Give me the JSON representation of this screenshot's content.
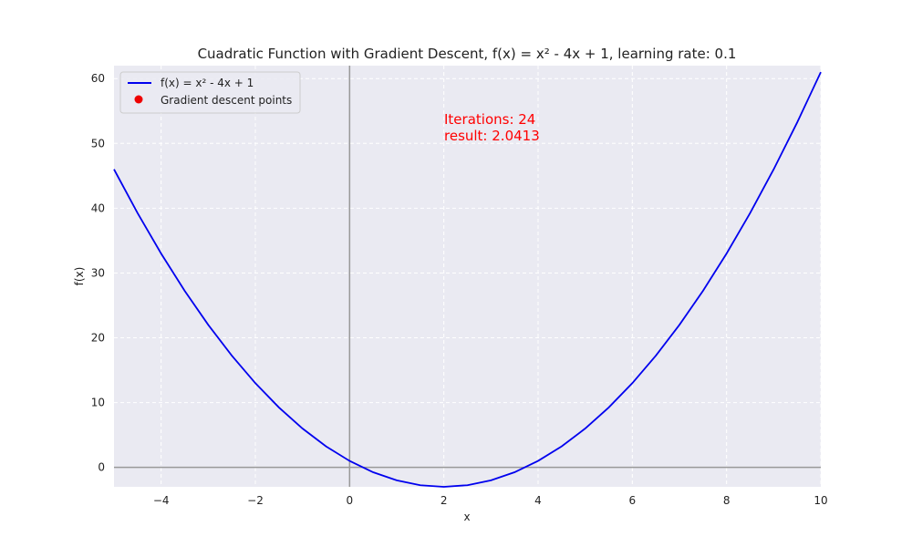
{
  "chart_data": {
    "type": "line",
    "title": "Cuadratic Function with Gradient Descent, f(x) = x² - 4x + 1, learning rate: 0.1",
    "xlabel": "x",
    "ylabel": "f(x)",
    "xlim": [
      -5,
      10
    ],
    "ylim": [
      -3,
      62
    ],
    "xticks": [
      -4,
      -2,
      0,
      2,
      4,
      6,
      8,
      10
    ],
    "xtick_labels": [
      "−4",
      "−2",
      "0",
      "2",
      "4",
      "6",
      "8",
      "10"
    ],
    "yticks": [
      0,
      10,
      20,
      30,
      40,
      50,
      60
    ],
    "ytick_labels": [
      "0",
      "10",
      "20",
      "30",
      "40",
      "50",
      "60"
    ],
    "grid": true,
    "legend_position": "upper-left",
    "series": [
      {
        "name": "f(x) = x² - 4x + 1",
        "kind": "line",
        "color": "#0000ee",
        "x": [
          -5,
          -4.5,
          -4,
          -3.5,
          -3,
          -2.5,
          -2,
          -1.5,
          -1,
          -0.5,
          0,
          0.5,
          1,
          1.5,
          2,
          2.5,
          3,
          3.5,
          4,
          4.5,
          5,
          5.5,
          6,
          6.5,
          7,
          7.5,
          8,
          8.5,
          9,
          9.5,
          10
        ],
        "y": [
          46,
          39.25,
          33,
          27.25,
          22,
          17.25,
          13,
          9.25,
          6,
          3.25,
          1,
          -0.75,
          -2,
          -2.75,
          -3,
          -2.75,
          -2,
          -0.75,
          1,
          3.25,
          6,
          9.25,
          13,
          17.25,
          22,
          27.25,
          33,
          39.25,
          46,
          53.25,
          61
        ]
      },
      {
        "name": "Gradient descent points",
        "kind": "scatter",
        "color": "#ee0000",
        "x": [],
        "y": []
      }
    ],
    "reference_lines": {
      "x": 0,
      "y": 0,
      "color": "#999999"
    },
    "annotation": {
      "lines": [
        "Iterations: 24",
        "result: 2.0413"
      ],
      "x": 2,
      "y": 53,
      "color": "#ff0000"
    },
    "colors": {
      "plot_background": "#eaeaf2",
      "grid": "#ffffff",
      "axis_line": "#999999"
    }
  }
}
